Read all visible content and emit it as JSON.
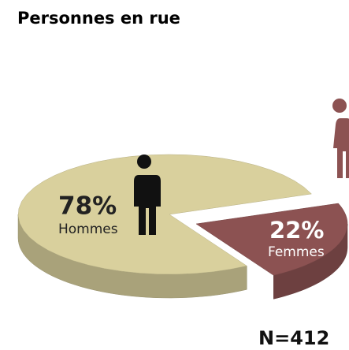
{
  "chart_data": {
    "type": "pie",
    "title": "Personnes en rue",
    "categories": [
      "Hommes",
      "Femmes"
    ],
    "values": [
      78,
      22
    ],
    "value_labels": [
      "78%",
      "22%"
    ],
    "colors": [
      "#d9d09d",
      "#8c5252"
    ],
    "note": "N=412"
  }
}
